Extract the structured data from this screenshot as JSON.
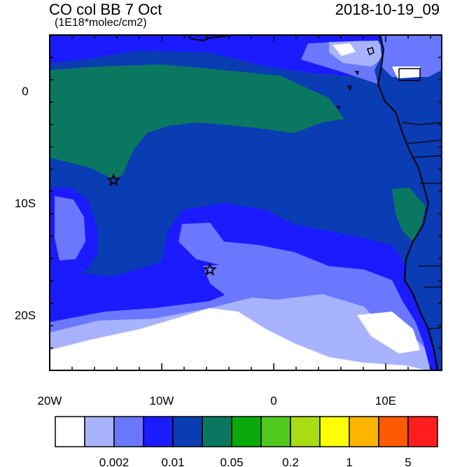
{
  "header": {
    "title": "CO col BB 7 Oct",
    "units": "(1E18*molec/cm2)",
    "valid_time": "2018-10-19_09"
  },
  "map": {
    "lon_range": [
      -20,
      15
    ],
    "lat_range": [
      -25,
      5
    ],
    "x_tick_labels": [
      "20W",
      "10W",
      "0",
      "10E"
    ],
    "y_tick_labels": [
      "0",
      "10S",
      "20S"
    ],
    "markers": [
      {
        "type": "star",
        "lon": -14.3,
        "lat": -8.0
      },
      {
        "type": "star",
        "lon": -5.7,
        "lat": -16.0
      }
    ]
  },
  "colorbar": {
    "colors": [
      "#ffffff",
      "#a8b3ff",
      "#6a78ff",
      "#1b1bff",
      "#0a3cb4",
      "#0a7860",
      "#0aaa0a",
      "#50c81e",
      "#aadc14",
      "#ffff00",
      "#ffb400",
      "#ff5a00",
      "#ff1e1e"
    ],
    "labels": [
      "0.002",
      "0.01",
      "0.05",
      "0.2",
      "1",
      "5"
    ]
  }
}
